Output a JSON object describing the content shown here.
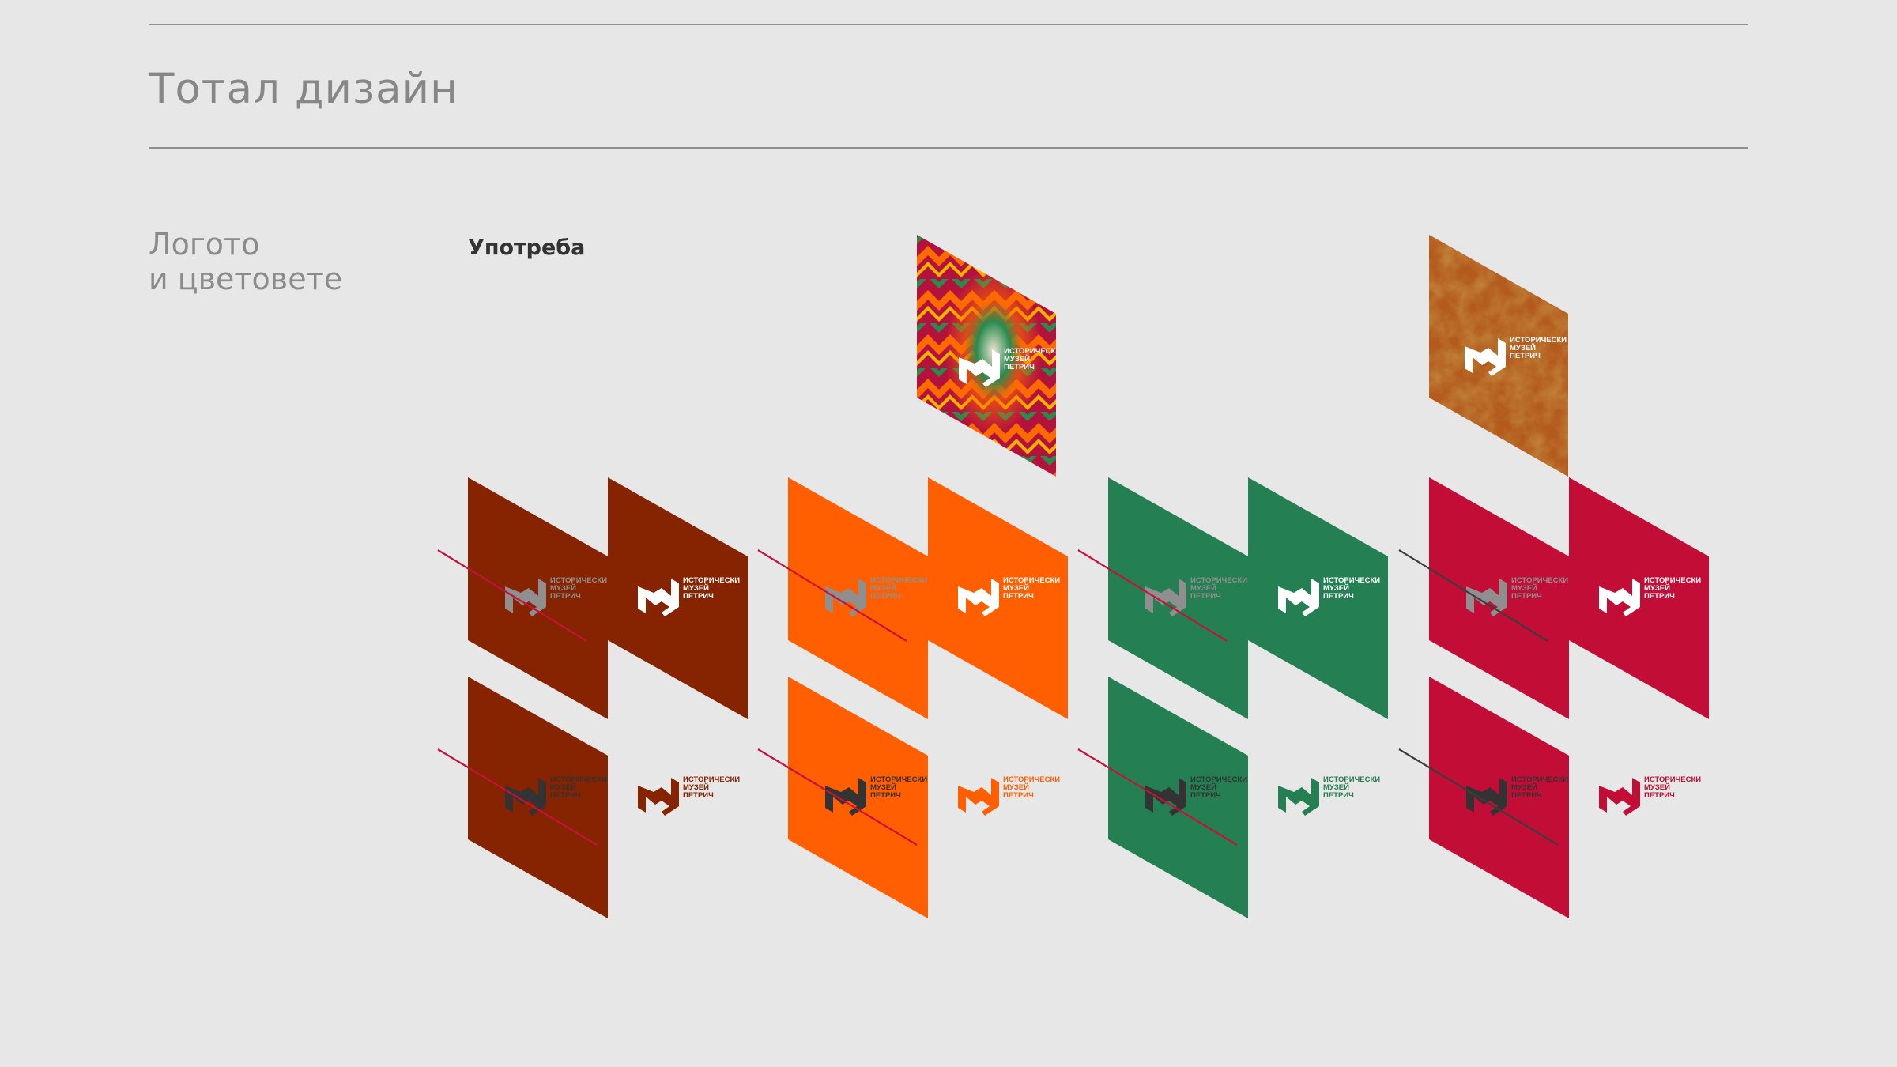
{
  "header": {
    "title": "Тотал дизайн"
  },
  "section": {
    "title_line1": "Логото",
    "title_line2": "и цветовете"
  },
  "usage": {
    "label": "Употреба"
  },
  "logo": {
    "line1": "ИСТОРИЧЕСКИ",
    "line2": "МУЗЕЙ",
    "line3": "ПЕТРИЧ"
  },
  "palette": [
    {
      "name": "brown",
      "color": "#862300",
      "stroke": "#c4123a"
    },
    {
      "name": "orange",
      "color": "#ff5f00",
      "stroke": "#c4123a"
    },
    {
      "name": "green",
      "color": "#248052",
      "stroke": "#c4123a"
    },
    {
      "name": "red",
      "color": "#c20e37",
      "stroke": "#3c3c3c"
    }
  ],
  "logo_colors": {
    "white": "#ffffff",
    "grey": "#8f8f8f",
    "dark": "#333333"
  },
  "textures": [
    {
      "name": "carpet-pattern",
      "column": "orange"
    },
    {
      "name": "rust-texture",
      "column": "red"
    }
  ]
}
